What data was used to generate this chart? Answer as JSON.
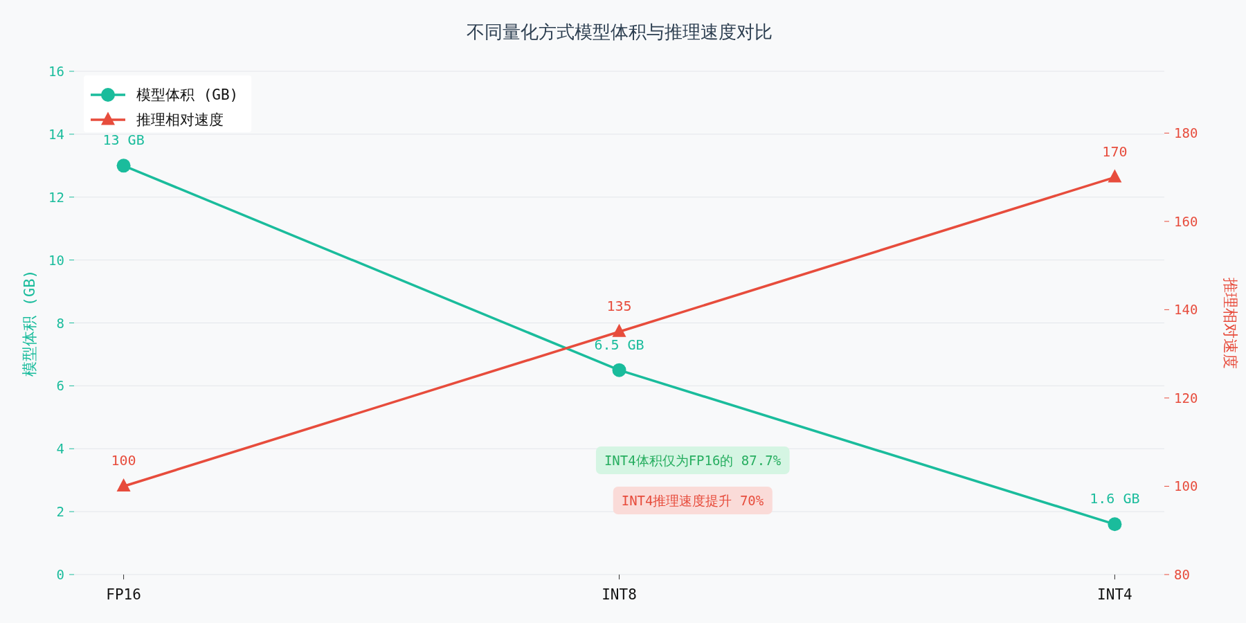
{
  "chart_data": {
    "type": "line",
    "title": "不同量化方式模型体积与推理速度对比",
    "categories": [
      "FP16",
      "INT8",
      "INT4"
    ],
    "ylabel": "模型体积 (GB)",
    "y2label": "推理相对速度",
    "ylim": [
      0,
      16
    ],
    "yticks": [
      0,
      2,
      4,
      6,
      8,
      10,
      12,
      14,
      16
    ],
    "y2lim": [
      80,
      194
    ],
    "y2ticks": [
      80,
      100,
      120,
      140,
      160,
      180
    ],
    "grid": "y",
    "legend": "top left",
    "series": [
      {
        "name": "模型体积 (GB)",
        "color": "#1abc9c",
        "values": [
          13,
          6.5,
          1.6
        ],
        "marker": "circle",
        "value_labels": [
          "13 GB",
          "6.5 GB",
          "1.6 GB"
        ]
      },
      {
        "name": "推理相对速度",
        "color": "#e74c3c",
        "values": [
          100,
          135,
          170
        ],
        "marker": "triangle",
        "axis": "y2",
        "value_labels": [
          "100",
          "135",
          "170"
        ]
      }
    ],
    "annotations": [
      "INT4体积仅为FP16的 87.7%",
      "INT4推理速度提升 70%"
    ]
  }
}
